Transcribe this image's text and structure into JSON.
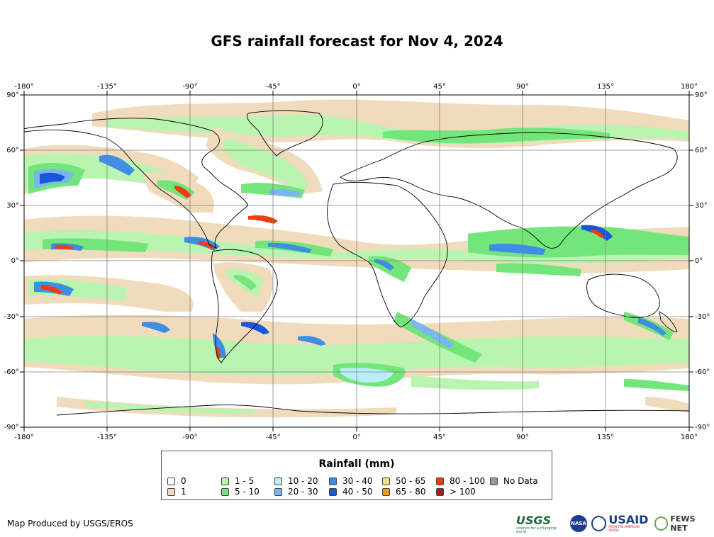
{
  "title": "GFS rainfall forecast for Nov 4, 2024",
  "axes": {
    "lon_labels": [
      "-180°",
      "-135°",
      "-90°",
      "-45°",
      "0°",
      "45°",
      "90°",
      "135°",
      "180°"
    ],
    "lat_labels": [
      "90°",
      "60°",
      "30°",
      "0°",
      "-30°",
      "-60°",
      "-90°"
    ]
  },
  "legend": {
    "title": "Rainfall (mm)",
    "items": [
      {
        "label": "0",
        "color": "#ffffff"
      },
      {
        "label": "1",
        "color": "#f0dcbc"
      },
      {
        "label": "1 - 5",
        "color": "#b9f4b0"
      },
      {
        "label": "5 - 10",
        "color": "#72e67a"
      },
      {
        "label": "10 - 20",
        "color": "#b8eef5"
      },
      {
        "label": "20 - 30",
        "color": "#7cb6ee"
      },
      {
        "label": "30 - 40",
        "color": "#3f8ee3"
      },
      {
        "label": "40 - 50",
        "color": "#1957d8"
      },
      {
        "label": "50 - 65",
        "color": "#f7e07a"
      },
      {
        "label": "65 - 80",
        "color": "#f39a1c"
      },
      {
        "label": "80 - 100",
        "color": "#ec3d12"
      },
      {
        "label": "> 100",
        "color": "#a01f1f"
      },
      {
        "label": "No Data",
        "color": "#9a9a9a"
      }
    ]
  },
  "credit": "Map Produced by USGS/EROS",
  "logos": {
    "usgs": "USGS",
    "usgs_tagline": "science for a changing world",
    "nasa": "NASA",
    "usaid": "USAID",
    "usaid_tagline": "FROM THE AMERICAN PEOPLE",
    "fews": "FEWS NET"
  }
}
